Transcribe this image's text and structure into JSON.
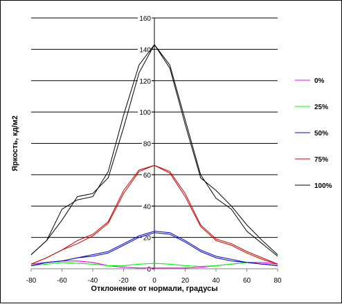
{
  "chart_data": {
    "type": "line",
    "title": "",
    "xlabel": "Отклонение от нормали, градусы",
    "ylabel": "Яркость, кд/м2",
    "xlim": [
      -80,
      80
    ],
    "ylim": [
      0,
      160
    ],
    "xticks": [
      -80,
      -60,
      -40,
      -20,
      0,
      20,
      40,
      60,
      80
    ],
    "yticks": [
      0,
      20,
      40,
      60,
      80,
      100,
      120,
      140,
      160
    ],
    "grid": "horizontal",
    "legend_position": "right",
    "series": [
      {
        "name": "0%",
        "color": "#ff00ff",
        "traces": [
          [
            [
              -80,
              3
            ],
            [
              -70,
              4
            ],
            [
              -60,
              5
            ],
            [
              -50,
              5
            ],
            [
              -40,
              4
            ],
            [
              -30,
              2
            ],
            [
              -20,
              1
            ],
            [
              -10,
              0.5
            ],
            [
              0,
              0.5
            ],
            [
              10,
              0.5
            ],
            [
              20,
              0.5
            ],
            [
              30,
              1
            ],
            [
              40,
              2
            ],
            [
              50,
              3
            ],
            [
              60,
              4
            ],
            [
              70,
              4
            ],
            [
              80,
              3
            ]
          ],
          [
            [
              -80,
              3
            ],
            [
              -70,
              4
            ],
            [
              -60,
              5
            ],
            [
              -50,
              5
            ],
            [
              -40,
              4
            ],
            [
              -30,
              2
            ],
            [
              -20,
              1
            ],
            [
              -10,
              0.5
            ],
            [
              0,
              0.5
            ],
            [
              10,
              0.5
            ],
            [
              20,
              0.5
            ],
            [
              30,
              1
            ],
            [
              40,
              2
            ],
            [
              50,
              3
            ],
            [
              60,
              4
            ],
            [
              70,
              4
            ],
            [
              80,
              3
            ]
          ]
        ]
      },
      {
        "name": "25%",
        "color": "#00ff00",
        "traces": [
          [
            [
              -80,
              2
            ],
            [
              -70,
              3
            ],
            [
              -60,
              4
            ],
            [
              -50,
              3.5
            ],
            [
              -40,
              3
            ],
            [
              -30,
              2
            ],
            [
              -20,
              2
            ],
            [
              -10,
              3
            ],
            [
              0,
              3.5
            ],
            [
              10,
              3
            ],
            [
              20,
              2
            ],
            [
              30,
              1.5
            ],
            [
              40,
              2
            ],
            [
              50,
              3
            ],
            [
              60,
              4
            ],
            [
              70,
              3
            ],
            [
              80,
              2
            ]
          ],
          [
            [
              -80,
              2
            ],
            [
              -70,
              3
            ],
            [
              -60,
              4
            ],
            [
              -50,
              3.5
            ],
            [
              -40,
              3
            ],
            [
              -30,
              2
            ],
            [
              -20,
              2
            ],
            [
              -10,
              3
            ],
            [
              0,
              3.5
            ],
            [
              10,
              3
            ],
            [
              20,
              2
            ],
            [
              30,
              1.5
            ],
            [
              40,
              2
            ],
            [
              50,
              3
            ],
            [
              60,
              4
            ],
            [
              70,
              3
            ],
            [
              80,
              2
            ]
          ]
        ]
      },
      {
        "name": "50%",
        "color": "#0000cc",
        "traces": [
          [
            [
              -80,
              2
            ],
            [
              -70,
              4
            ],
            [
              -60,
              5
            ],
            [
              -50,
              7
            ],
            [
              -40,
              9
            ],
            [
              -30,
              11
            ],
            [
              -20,
              16
            ],
            [
              -10,
              21
            ],
            [
              0,
              24
            ],
            [
              10,
              23
            ],
            [
              20,
              18
            ],
            [
              30,
              12
            ],
            [
              40,
              8
            ],
            [
              50,
              6
            ],
            [
              60,
              4
            ],
            [
              70,
              3
            ],
            [
              80,
              2
            ]
          ],
          [
            [
              -80,
              2
            ],
            [
              -70,
              4
            ],
            [
              -60,
              5
            ],
            [
              -50,
              7
            ],
            [
              -40,
              8
            ],
            [
              -30,
              10
            ],
            [
              -20,
              15
            ],
            [
              -10,
              20
            ],
            [
              0,
              23
            ],
            [
              10,
              22
            ],
            [
              20,
              17
            ],
            [
              30,
              11
            ],
            [
              40,
              7
            ],
            [
              50,
              5
            ],
            [
              60,
              4
            ],
            [
              70,
              3
            ],
            [
              80,
              2
            ]
          ]
        ]
      },
      {
        "name": "75%",
        "color": "#cc0000",
        "traces": [
          [
            [
              -80,
              3
            ],
            [
              -70,
              7
            ],
            [
              -60,
              12
            ],
            [
              -50,
              18
            ],
            [
              -40,
              22
            ],
            [
              -30,
              30
            ],
            [
              -20,
              50
            ],
            [
              -10,
              63
            ],
            [
              0,
              66
            ],
            [
              10,
              62
            ],
            [
              20,
              48
            ],
            [
              30,
              28
            ],
            [
              40,
              19
            ],
            [
              50,
              16
            ],
            [
              60,
              11
            ],
            [
              70,
              7
            ],
            [
              80,
              3
            ]
          ],
          [
            [
              -80,
              3
            ],
            [
              -70,
              7
            ],
            [
              -60,
              12
            ],
            [
              -50,
              16
            ],
            [
              -40,
              21
            ],
            [
              -30,
              29
            ],
            [
              -20,
              48
            ],
            [
              -10,
              62
            ],
            [
              0,
              66
            ],
            [
              10,
              61
            ],
            [
              20,
              46
            ],
            [
              30,
              27
            ],
            [
              40,
              18
            ],
            [
              50,
              15
            ],
            [
              60,
              10
            ],
            [
              70,
              6
            ],
            [
              80,
              3
            ]
          ]
        ]
      },
      {
        "name": "100%",
        "color": "#000000",
        "traces": [
          [
            [
              -80,
              9
            ],
            [
              -70,
              18
            ],
            [
              -60,
              31
            ],
            [
              -50,
              46
            ],
            [
              -40,
              48
            ],
            [
              -30,
              58
            ],
            [
              -20,
              90
            ],
            [
              -10,
              125
            ],
            [
              0,
              143
            ],
            [
              10,
              130
            ],
            [
              20,
              95
            ],
            [
              30,
              60
            ],
            [
              40,
              45
            ],
            [
              50,
              38
            ],
            [
              60,
              24
            ],
            [
              70,
              16
            ],
            [
              80,
              8
            ]
          ],
          [
            [
              -80,
              9
            ],
            [
              -70,
              18
            ],
            [
              -60,
              38
            ],
            [
              -50,
              44
            ],
            [
              -40,
              46
            ],
            [
              -30,
              62
            ],
            [
              -20,
              98
            ],
            [
              -10,
              130
            ],
            [
              0,
              143
            ],
            [
              10,
              128
            ],
            [
              20,
              92
            ],
            [
              30,
              58
            ],
            [
              40,
              50
            ],
            [
              50,
              40
            ],
            [
              60,
              28
            ],
            [
              70,
              18
            ],
            [
              80,
              9
            ]
          ]
        ]
      }
    ]
  }
}
